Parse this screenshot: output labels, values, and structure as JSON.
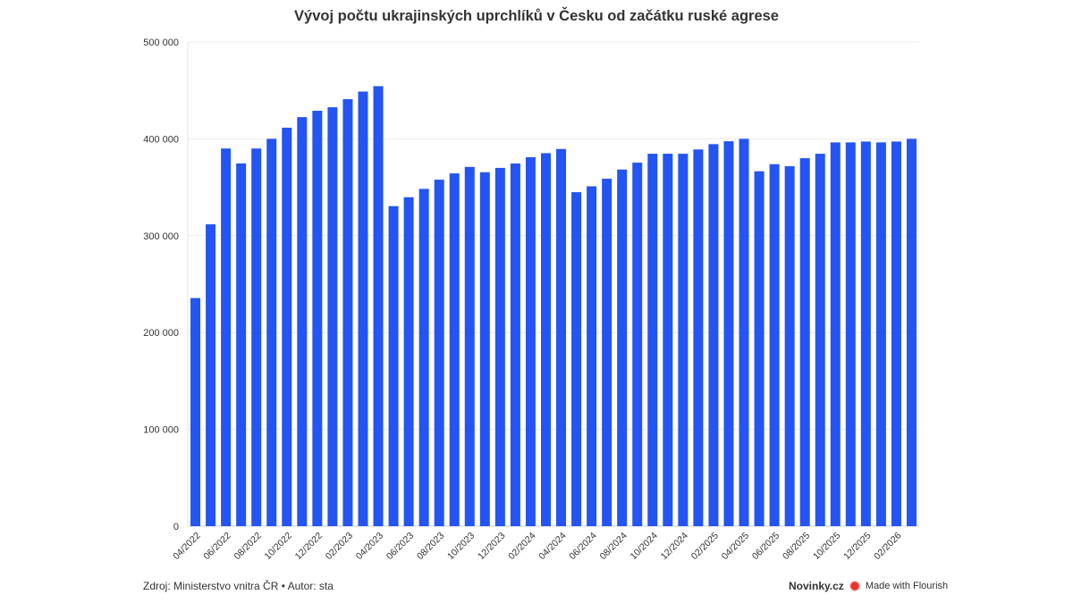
{
  "chart_data": {
    "type": "bar",
    "title": "Vývoj počtu ukrajinských uprchlíků v Česku od začátku ruské agrese",
    "xlabel": "",
    "ylabel": "",
    "ylim": [
      0,
      500000
    ],
    "y_ticks": [
      0,
      100000,
      200000,
      300000,
      400000,
      500000
    ],
    "y_tick_labels": [
      "0",
      "100 000",
      "200 000",
      "300 000",
      "400 000",
      "500 000"
    ],
    "grid": true,
    "bar_color": "#2454f2",
    "categories": [
      "04/2022",
      "",
      "06/2022",
      "",
      "08/2022",
      "",
      "10/2022",
      "",
      "12/2022",
      "",
      "02/2023",
      "",
      "04/2023",
      "",
      "06/2023",
      "",
      "08/2023",
      "",
      "10/2023",
      "",
      "12/2023",
      "",
      "02/2024",
      "",
      "04/2024",
      "",
      "06/2024",
      "",
      "08/2024",
      "",
      "10/2024",
      "",
      "12/2024",
      "",
      "02/2025",
      "",
      "04/2025",
      "",
      "06/2025",
      "",
      "08/2025",
      "",
      "10/2025",
      "",
      "12/2025",
      "",
      "02/2026",
      ""
    ],
    "values": [
      235600,
      311700,
      390000,
      374600,
      390000,
      400000,
      411500,
      422400,
      429000,
      432600,
      440900,
      448800,
      454400,
      330500,
      339700,
      348300,
      357800,
      364300,
      371000,
      365500,
      370000,
      374500,
      381000,
      385200,
      389500,
      344900,
      351000,
      358800,
      368300,
      375400,
      384600,
      384600,
      384600,
      389000,
      394500,
      397500,
      400000,
      366500,
      373800,
      371700,
      380000,
      384600,
      396300,
      396300,
      397200,
      396300,
      397200,
      400000
    ]
  },
  "footer": {
    "source": "Zdroj: Ministerstvo vnitra ČR • Autor: sta",
    "brand": "Novinky.cz",
    "flourish": "Made with Flourish"
  }
}
